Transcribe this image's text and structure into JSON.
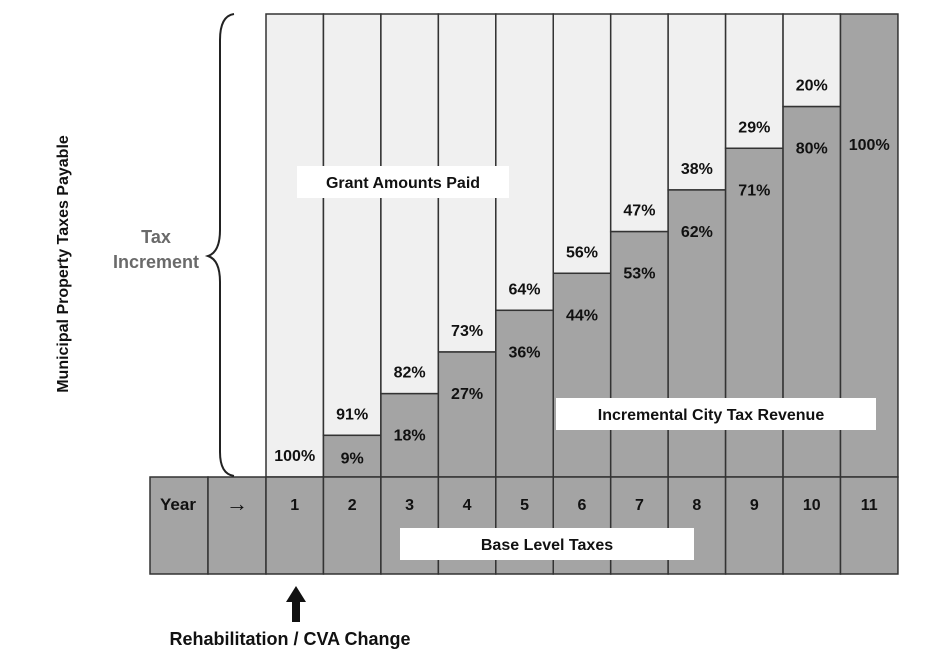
{
  "chart_data": {
    "type": "bar",
    "stacked": true,
    "categories": [
      "1",
      "2",
      "3",
      "4",
      "5",
      "6",
      "7",
      "8",
      "9",
      "10",
      "11"
    ],
    "series": [
      {
        "name": "Incremental City Tax Revenue",
        "values": [
          0,
          9,
          18,
          27,
          36,
          44,
          53,
          62,
          71,
          80,
          100
        ]
      },
      {
        "name": "Grant Amounts Paid",
        "values": [
          100,
          91,
          82,
          73,
          64,
          56,
          47,
          38,
          29,
          20,
          0
        ]
      }
    ],
    "value_suffix": "%",
    "ylabel": "Municipal Property Taxes Payable",
    "ylim": [
      0,
      100
    ]
  },
  "labels": {
    "year": "Year",
    "arrow": "→",
    "tax": "Tax",
    "increment": "Increment",
    "grant_amounts_paid": "Grant Amounts Paid",
    "incremental_city_tax_revenue": "Incremental City Tax Revenue",
    "base_level_taxes": "Base Level Taxes",
    "rehabilitation": "Rehabilitation / CVA Change"
  },
  "colors": {
    "grant": "#f0f0f0",
    "revenue": "#a4a4a4",
    "base": "#a4a4a4",
    "border": "#333333",
    "label_box": "#ffffff"
  }
}
